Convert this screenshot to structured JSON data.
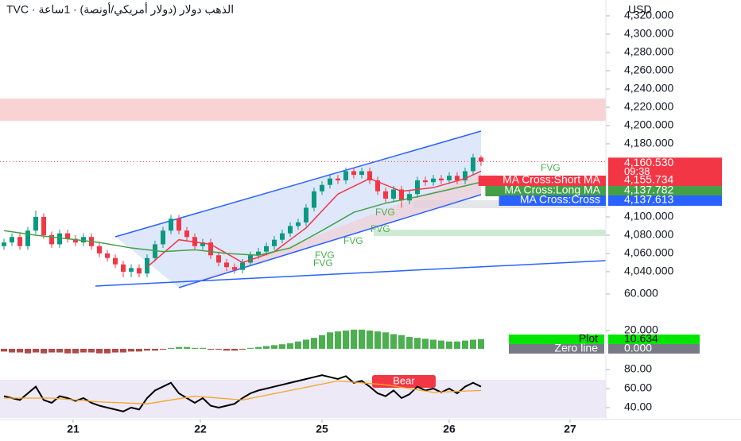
{
  "chart_data": {
    "type": "candlestick",
    "title": "TVC · الذهب دولار (دولار أمريكي/أونصة) · 1ساعة",
    "currency": "USD",
    "colors": {
      "up": "#089981",
      "down": "#f23645"
    },
    "xlim": [
      -0.5,
      75.7
    ],
    "xticks": [
      {
        "value": 8.7,
        "label": "21"
      },
      {
        "value": 24.7,
        "label": "22"
      },
      {
        "value": 40,
        "label": "25"
      },
      {
        "value": 56,
        "label": "26"
      },
      {
        "value": 71.2,
        "label": "27"
      }
    ],
    "ylim": [
      4024.3,
      4337.4
    ],
    "yticks": [
      {
        "value": 4040,
        "label": "4,040.000"
      },
      {
        "value": 4060,
        "label": "4,060.000"
      },
      {
        "value": 4080,
        "label": "4,080.000"
      },
      {
        "value": 4100,
        "label": "4,100.000"
      },
      {
        "value": 4180,
        "label": "4,180.000"
      },
      {
        "value": 4200,
        "label": "4,200.000"
      },
      {
        "value": 4220,
        "label": "4,220.000"
      },
      {
        "value": 4240,
        "label": "4,240.000"
      },
      {
        "value": 4260,
        "label": "4,260.000"
      },
      {
        "value": 4280,
        "label": "4,280.000"
      },
      {
        "value": 4300,
        "label": "4,300.000"
      },
      {
        "value": 4320,
        "label": "4,320.000"
      }
    ],
    "open": [
      4068,
      4072,
      4078,
      4068,
      4085,
      4100,
      4080,
      4070,
      4082,
      4076,
      4072,
      4078,
      4068,
      4060,
      4055,
      4048,
      4040,
      4044,
      4038,
      4055,
      4070,
      4085,
      4098,
      4085,
      4078,
      4068,
      4072,
      4058,
      4050,
      4045,
      4042,
      4050,
      4058,
      4062,
      4068,
      4075,
      4082,
      4090,
      4094,
      4110,
      4128,
      4135,
      4142,
      4140,
      4150,
      4146,
      4150,
      4140,
      4128,
      4120,
      4130,
      4118,
      4125,
      4140,
      4138,
      4142,
      4140,
      4145,
      4140,
      4150,
      4165
    ],
    "high": [
      4076,
      4082,
      4082,
      4089,
      4107,
      4104,
      4084,
      4086,
      4086,
      4080,
      4082,
      4082,
      4072,
      4064,
      4059,
      4052,
      4048,
      4048,
      4059,
      4074,
      4089,
      4102,
      4102,
      4089,
      4082,
      4076,
      4076,
      4062,
      4054,
      4049,
      4054,
      4062,
      4066,
      4072,
      4079,
      4086,
      4094,
      4098,
      4114,
      4132,
      4139,
      4146,
      4146,
      4154,
      4154,
      4154,
      4154,
      4144,
      4132,
      4134,
      4134,
      4129,
      4144,
      4144,
      4146,
      4146,
      4149,
      4149,
      4154,
      4169,
      4167
    ],
    "low": [
      4064,
      4068,
      4064,
      4064,
      4081,
      4076,
      4066,
      4066,
      4072,
      4068,
      4068,
      4064,
      4056,
      4051,
      4044,
      4034,
      4034,
      4034,
      4034,
      4051,
      4066,
      4081,
      4081,
      4074,
      4064,
      4064,
      4054,
      4046,
      4041,
      4038,
      4038,
      4046,
      4054,
      4058,
      4064,
      4071,
      4078,
      4086,
      4090,
      4106,
      4124,
      4131,
      4136,
      4136,
      4142,
      4142,
      4136,
      4124,
      4116,
      4116,
      4110,
      4114,
      4121,
      4134,
      4134,
      4136,
      4136,
      4136,
      4136,
      4146,
      4156
    ],
    "close": [
      4072,
      4078,
      4068,
      4085,
      4100,
      4080,
      4070,
      4082,
      4076,
      4072,
      4078,
      4068,
      4060,
      4055,
      4048,
      4040,
      4044,
      4038,
      4055,
      4070,
      4085,
      4098,
      4085,
      4078,
      4068,
      4072,
      4058,
      4050,
      4045,
      4042,
      4050,
      4058,
      4062,
      4068,
      4075,
      4082,
      4090,
      4094,
      4110,
      4128,
      4135,
      4142,
      4140,
      4150,
      4146,
      4150,
      4140,
      4128,
      4120,
      4130,
      4118,
      4125,
      4140,
      4138,
      4142,
      4140,
      4145,
      4140,
      4150,
      4165,
      4160.53
    ],
    "series": [
      {
        "color": "#f23645",
        "x": [
          18,
          22,
          26,
          30,
          34,
          38,
          42,
          46,
          50,
          54,
          58,
          60
        ],
        "values": [
          4045,
          4075,
          4070,
          4050,
          4062,
          4088,
          4125,
          4142,
          4128,
          4132,
          4142,
          4150
        ]
      },
      {
        "color": "#43a047",
        "x": [
          0,
          4,
          8,
          12,
          16,
          20,
          24,
          28,
          32,
          36,
          40,
          44,
          48,
          52,
          56,
          60
        ],
        "values": [
          4085,
          4080,
          4076,
          4072,
          4066,
          4062,
          4064,
          4060,
          4058,
          4066,
          4085,
          4105,
          4115,
          4122,
          4130,
          4138
        ]
      }
    ],
    "last": {
      "value": 4160.53,
      "label": "4,160.530",
      "countdown": "09:38"
    },
    "markers": {
      "names": [
        "MA Cross:Short MA",
        "MA Cross:Long MA",
        "MA Cross:Cross"
      ],
      "values": [
        4155.734,
        4137.782,
        4137.613
      ],
      "value_labels": [
        "4,155.734",
        "4,137.782",
        "4,137.613"
      ],
      "colors": [
        "#f23645",
        "#43a047",
        "#2962ff"
      ]
    },
    "annotations": [
      "FVG",
      "FVG",
      "FVG",
      "FVG",
      "FVG",
      "FVG",
      "Bear"
    ],
    "indicators": [
      {
        "type": "histogram",
        "ylim": [
          -9.6,
          68.7
        ],
        "yticks": [
          {
            "value": 20,
            "label": "20.000"
          },
          {
            "value": 60,
            "label": "60.000"
          }
        ],
        "colors": {
          "up": "#4caf50",
          "down": "#b24a4a"
        },
        "values": [
          -3,
          -4,
          -4,
          -5,
          -4,
          -5,
          -4,
          -4,
          -5,
          -5,
          -4,
          -4,
          -5,
          -5,
          -4,
          -4,
          -3,
          -3,
          -2,
          -2,
          -1,
          1,
          2,
          2,
          1,
          1,
          -1,
          -1,
          -2,
          -2,
          -1,
          1,
          2,
          3,
          4,
          5,
          6,
          8,
          10,
          12,
          15,
          18,
          19,
          20,
          21,
          21,
          20,
          19,
          18,
          16,
          15,
          13,
          12,
          11,
          10,
          9,
          8,
          8,
          9,
          10,
          10.634
        ],
        "legend": {
          "names": [
            "Plot",
            "Zero line"
          ],
          "values": [
            10.634,
            0
          ],
          "value_labels": [
            "10.634",
            "0.000"
          ],
          "colors": [
            "#00e600",
            "#787b86"
          ]
        }
      },
      {
        "type": "line",
        "ylim": [
          27.5,
          88.3
        ],
        "yticks": [
          {
            "value": 40,
            "label": "40.00"
          },
          {
            "value": 60,
            "label": "60.00"
          },
          {
            "value": 80,
            "label": "80.00"
          }
        ],
        "series": [
          {
            "color": "#000000",
            "values": [
              52,
              50,
              48,
              55,
              62,
              48,
              45,
              52,
              50,
              47,
              50,
              45,
              42,
              40,
              38,
              36,
              40,
              38,
              50,
              58,
              62,
              66,
              55,
              50,
              45,
              50,
              42,
              40,
              42,
              44,
              50,
              55,
              58,
              60,
              62,
              64,
              66,
              68,
              70,
              72,
              74,
              72,
              70,
              73,
              66,
              68,
              62,
              55,
              52,
              58,
              50,
              54,
              62,
              58,
              60,
              56,
              60,
              55,
              62,
              66,
              62
            ]
          },
          {
            "color": "#f5a623",
            "x": [
              0,
              6,
              12,
              18,
              24,
              30,
              36,
              42,
              48,
              54,
              60
            ],
            "values": [
              50,
              50,
              46,
              44,
              52,
              48,
              58,
              68,
              64,
              56,
              58
            ]
          }
        ]
      }
    ]
  }
}
